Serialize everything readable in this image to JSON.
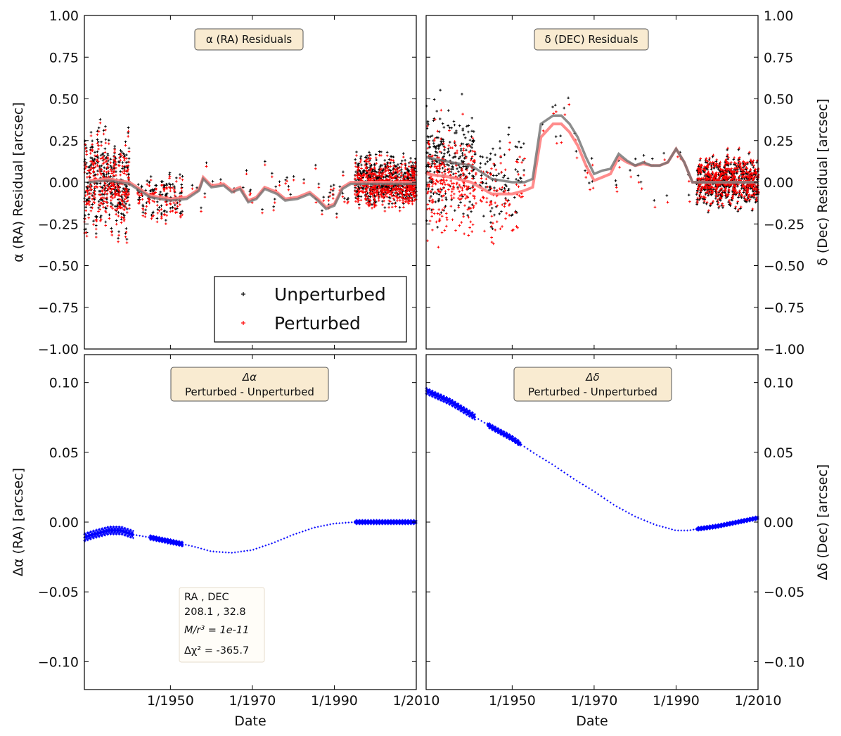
{
  "chart_data": [
    {
      "type": "scatter",
      "panel": "top-left",
      "title": "α (RA) Residuals",
      "ylabel": "α (RA) Residual [arcsec]",
      "xlabel": "",
      "ylim": [
        -1.0,
        1.0
      ],
      "y_ticks": [
        "1.00",
        "0.75",
        "0.50",
        "0.25",
        "0.00",
        "−0.25",
        "−0.50",
        "−0.75",
        "−1.00"
      ],
      "x_ticks": [],
      "legend": {
        "placement": "lower-right",
        "entries": [
          "Unperturbed",
          "Perturbed"
        ]
      },
      "series": [
        {
          "name": "Unperturbed",
          "color": "#000000",
          "marker": "+"
        },
        {
          "name": "Perturbed",
          "color": "#ff0000",
          "marker": "+"
        }
      ],
      "trend": [
        [
          1930,
          0.01
        ],
        [
          1935,
          0.02
        ],
        [
          1940,
          0.0
        ],
        [
          1945,
          -0.08
        ],
        [
          1950,
          -0.1
        ],
        [
          1954,
          -0.09
        ],
        [
          1957,
          -0.04
        ],
        [
          1958,
          0.03
        ],
        [
          1960,
          -0.02
        ],
        [
          1963,
          -0.01
        ],
        [
          1965,
          -0.05
        ],
        [
          1967,
          -0.03
        ],
        [
          1969,
          -0.11
        ],
        [
          1971,
          -0.09
        ],
        [
          1973,
          -0.03
        ],
        [
          1976,
          -0.06
        ],
        [
          1978,
          -0.1
        ],
        [
          1981,
          -0.09
        ],
        [
          1984,
          -0.06
        ],
        [
          1986,
          -0.1
        ],
        [
          1988,
          -0.15
        ],
        [
          1990,
          -0.13
        ],
        [
          1992,
          -0.03
        ],
        [
          1994,
          0.0
        ],
        [
          2000,
          0.0
        ],
        [
          2010,
          0.0
        ]
      ]
    },
    {
      "type": "scatter",
      "panel": "top-right",
      "title": "δ (DEC) Residuals",
      "ylabel": "δ (Dec) Residual [arcsec]",
      "xlabel": "",
      "ylim": [
        -1.0,
        1.0
      ],
      "y_ticks": [
        "1.00",
        "0.75",
        "0.50",
        "0.25",
        "0.00",
        "−0.25",
        "−0.50",
        "−0.75",
        "−1.00"
      ],
      "x_ticks": [],
      "trend_unperturbed": [
        [
          1929,
          0.15
        ],
        [
          1935,
          0.12
        ],
        [
          1940,
          0.1
        ],
        [
          1945,
          0.02
        ],
        [
          1950,
          0.0
        ],
        [
          1953,
          0.0
        ],
        [
          1955,
          0.02
        ],
        [
          1957,
          0.35
        ],
        [
          1960,
          0.4
        ],
        [
          1962,
          0.4
        ],
        [
          1964,
          0.35
        ],
        [
          1966,
          0.27
        ],
        [
          1968,
          0.15
        ],
        [
          1970,
          0.05
        ],
        [
          1972,
          0.07
        ],
        [
          1974,
          0.08
        ],
        [
          1976,
          0.17
        ],
        [
          1978,
          0.13
        ],
        [
          1980,
          0.1
        ],
        [
          1982,
          0.12
        ],
        [
          1984,
          0.1
        ],
        [
          1986,
          0.1
        ],
        [
          1988,
          0.12
        ],
        [
          1990,
          0.2
        ],
        [
          1992,
          0.12
        ],
        [
          1994,
          0.0
        ],
        [
          2010,
          0.0
        ]
      ],
      "trend_perturbed": [
        [
          1929,
          0.05
        ],
        [
          1935,
          0.03
        ],
        [
          1940,
          0.0
        ],
        [
          1945,
          -0.07
        ],
        [
          1950,
          -0.07
        ],
        [
          1953,
          -0.05
        ],
        [
          1955,
          -0.03
        ],
        [
          1957,
          0.27
        ],
        [
          1960,
          0.35
        ],
        [
          1962,
          0.35
        ],
        [
          1964,
          0.3
        ],
        [
          1966,
          0.22
        ],
        [
          1968,
          0.1
        ],
        [
          1970,
          0.01
        ],
        [
          1972,
          0.03
        ],
        [
          1974,
          0.05
        ],
        [
          1976,
          0.15
        ],
        [
          1978,
          0.12
        ],
        [
          1980,
          0.1
        ],
        [
          1982,
          0.11
        ],
        [
          1984,
          0.1
        ],
        [
          1986,
          0.1
        ],
        [
          1988,
          0.12
        ],
        [
          1990,
          0.2
        ],
        [
          1992,
          0.12
        ],
        [
          1994,
          0.0
        ],
        [
          2010,
          0.0
        ]
      ]
    },
    {
      "type": "scatter",
      "panel": "bottom-left",
      "title": "Δα",
      "subtitle": "Perturbed - Unperturbed",
      "ylabel": "Δα (RA) [arcsec]",
      "xlabel": "Date",
      "ylim": [
        -0.12,
        0.12
      ],
      "xlim": [
        1929,
        2010
      ],
      "y_ticks": [
        "0.10",
        "0.05",
        "0.00",
        "−0.05",
        "−0.10"
      ],
      "x_ticks": [
        "1/1950",
        "1/1970",
        "1/1990",
        "1/2010"
      ],
      "color": "#0000ff",
      "curve": [
        [
          1929,
          -0.011
        ],
        [
          1931,
          -0.009
        ],
        [
          1935,
          -0.006
        ],
        [
          1938,
          -0.006
        ],
        [
          1941,
          -0.009
        ],
        [
          1945,
          -0.011
        ],
        [
          1950,
          -0.014
        ],
        [
          1955,
          -0.017
        ],
        [
          1960,
          -0.021
        ],
        [
          1965,
          -0.022
        ],
        [
          1970,
          -0.02
        ],
        [
          1975,
          -0.015
        ],
        [
          1980,
          -0.009
        ],
        [
          1985,
          -0.004
        ],
        [
          1990,
          -0.001
        ],
        [
          1995,
          0.0
        ],
        [
          2000,
          0.0
        ],
        [
          2010,
          0.0
        ]
      ],
      "info_box": {
        "line1": "RA , DEC",
        "line2": "208.1 , 32.8",
        "line3": "M/r³ = 1e-11",
        "line4": "Δχ² = -365.7"
      }
    },
    {
      "type": "scatter",
      "panel": "bottom-right",
      "title": "Δδ",
      "subtitle": "Perturbed - Unperturbed",
      "ylabel": "Δδ (Dec) [arcsec]",
      "xlabel": "Date",
      "ylim": [
        -0.12,
        0.12
      ],
      "xlim": [
        1929,
        2010
      ],
      "y_ticks": [
        "0.10",
        "0.05",
        "0.00",
        "−0.05",
        "−0.10"
      ],
      "x_ticks": [
        "1/1950",
        "1/1970",
        "1/1990",
        "1/2010"
      ],
      "color": "#0000ff",
      "curve": [
        [
          1929,
          0.094
        ],
        [
          1935,
          0.086
        ],
        [
          1940,
          0.077
        ],
        [
          1945,
          0.068
        ],
        [
          1950,
          0.06
        ],
        [
          1955,
          0.05
        ],
        [
          1960,
          0.041
        ],
        [
          1965,
          0.031
        ],
        [
          1970,
          0.022
        ],
        [
          1975,
          0.012
        ],
        [
          1980,
          0.004
        ],
        [
          1985,
          -0.002
        ],
        [
          1990,
          -0.006
        ],
        [
          1993,
          -0.006
        ],
        [
          1995,
          -0.005
        ],
        [
          2000,
          -0.003
        ],
        [
          2005,
          0.0
        ],
        [
          2010,
          0.003
        ]
      ]
    }
  ],
  "colors": {
    "unperturbed": "#000000",
    "perturbed": "#ff0000",
    "trend_unperturbed": "#6f6f6f",
    "trend_perturbed": "#ff7f7f",
    "delta": "#0000ff"
  }
}
